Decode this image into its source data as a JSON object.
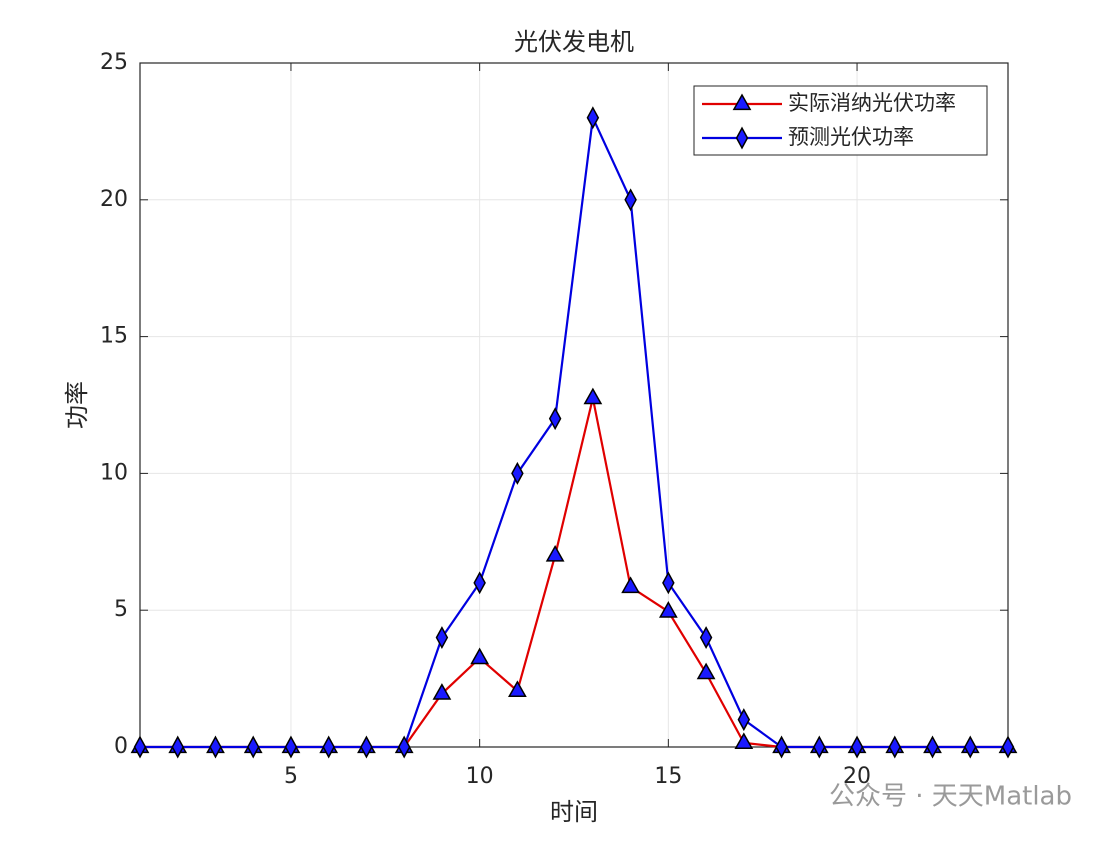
{
  "chart_data": {
    "type": "line",
    "title": "光伏发电机",
    "xlabel": "时间",
    "ylabel": "功率",
    "x": [
      1,
      2,
      3,
      4,
      5,
      6,
      7,
      8,
      9,
      10,
      11,
      12,
      13,
      14,
      15,
      16,
      17,
      18,
      19,
      20,
      21,
      22,
      23,
      24
    ],
    "series": [
      {
        "name": "实际消纳光伏功率",
        "color": "#e00000",
        "marker": "triangle",
        "values": [
          0,
          0,
          0,
          0,
          0,
          0,
          0,
          0,
          1.95,
          3.25,
          2.05,
          7,
          12.75,
          5.85,
          4.95,
          2.7,
          0.15,
          0,
          0,
          0,
          0,
          0,
          0,
          0
        ]
      },
      {
        "name": "预测光伏功率",
        "color": "#0000e0",
        "marker": "diamond",
        "values": [
          0,
          0,
          0,
          0,
          0,
          0,
          0,
          0,
          4,
          6,
          10,
          12,
          23,
          20,
          6,
          4,
          1,
          0,
          0,
          0,
          0,
          0,
          0,
          0
        ]
      }
    ],
    "marker_fill": "#1a1aff",
    "xlim": [
      1,
      24
    ],
    "xticks": [
      5,
      10,
      15,
      20
    ],
    "ylim": [
      0,
      25
    ],
    "yticks": [
      0,
      5,
      10,
      15,
      20,
      25
    ],
    "grid": true,
    "legend": "top-right"
  },
  "watermark": "公众号 · 天天Matlab"
}
